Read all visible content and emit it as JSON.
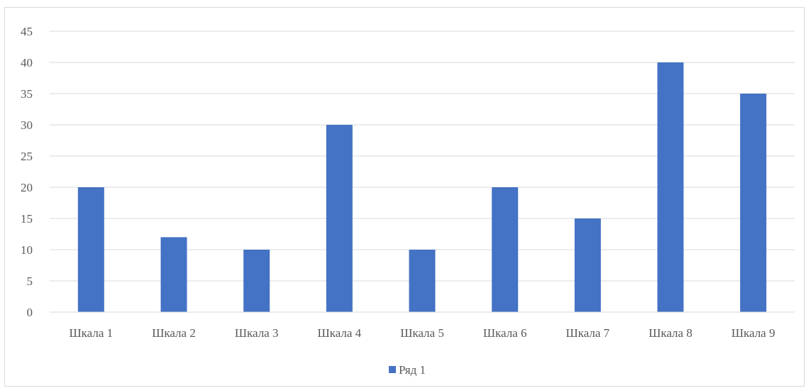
{
  "chart_data": {
    "type": "bar",
    "categories": [
      "Шкала 1",
      "Шкала 2",
      "Шкала 3",
      "Шкала 4",
      "Шкала 5",
      "Шкала 6",
      "Шкала 7",
      "Шкала 8",
      "Шкала 9"
    ],
    "series": [
      {
        "name": "Ряд 1",
        "values": [
          20,
          12,
          10,
          30,
          10,
          20,
          15,
          40,
          35
        ],
        "color": "#4472c4"
      }
    ],
    "title": "",
    "xlabel": "",
    "ylabel": "",
    "ylim": [
      0,
      45
    ],
    "yticks": [
      0,
      5,
      10,
      15,
      20,
      25,
      30,
      35,
      40,
      45
    ],
    "grid": true,
    "legend": "bottom"
  }
}
